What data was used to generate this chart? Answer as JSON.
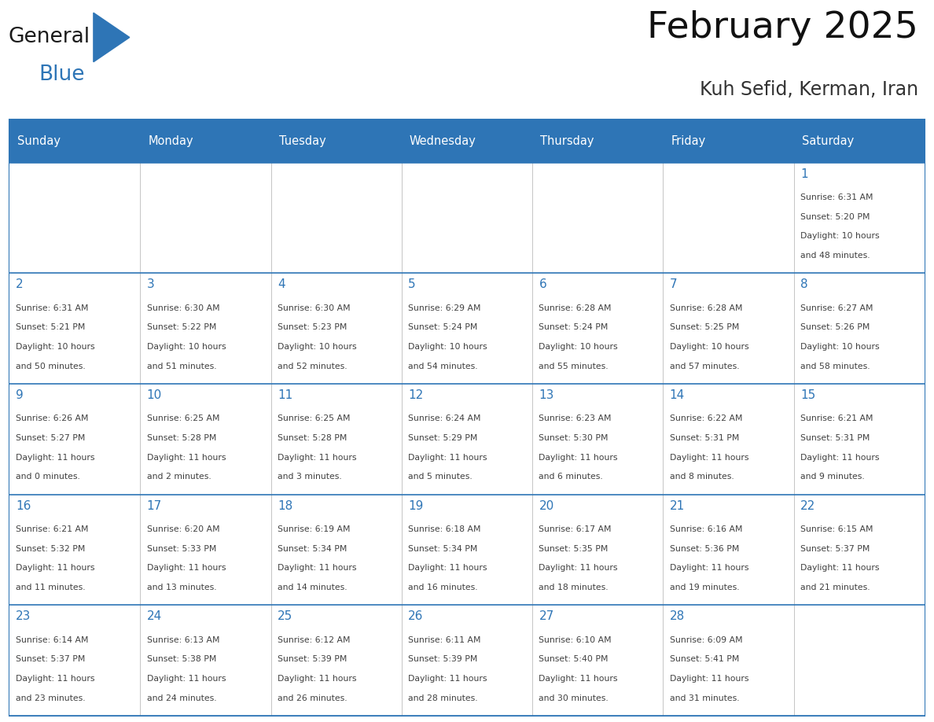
{
  "title": "February 2025",
  "subtitle": "Kuh Sefid, Kerman, Iran",
  "header_bg": "#2E75B6",
  "header_text_color": "#FFFFFF",
  "border_color": "#2E75B6",
  "day_number_color": "#2E75B6",
  "cell_text_color": "#404040",
  "days_of_week": [
    "Sunday",
    "Monday",
    "Tuesday",
    "Wednesday",
    "Thursday",
    "Friday",
    "Saturday"
  ],
  "calendar_data": [
    [
      {
        "day": "",
        "lines": []
      },
      {
        "day": "",
        "lines": []
      },
      {
        "day": "",
        "lines": []
      },
      {
        "day": "",
        "lines": []
      },
      {
        "day": "",
        "lines": []
      },
      {
        "day": "",
        "lines": []
      },
      {
        "day": "1",
        "lines": [
          "Sunrise: 6:31 AM",
          "Sunset: 5:20 PM",
          "Daylight: 10 hours",
          "and 48 minutes."
        ]
      }
    ],
    [
      {
        "day": "2",
        "lines": [
          "Sunrise: 6:31 AM",
          "Sunset: 5:21 PM",
          "Daylight: 10 hours",
          "and 50 minutes."
        ]
      },
      {
        "day": "3",
        "lines": [
          "Sunrise: 6:30 AM",
          "Sunset: 5:22 PM",
          "Daylight: 10 hours",
          "and 51 minutes."
        ]
      },
      {
        "day": "4",
        "lines": [
          "Sunrise: 6:30 AM",
          "Sunset: 5:23 PM",
          "Daylight: 10 hours",
          "and 52 minutes."
        ]
      },
      {
        "day": "5",
        "lines": [
          "Sunrise: 6:29 AM",
          "Sunset: 5:24 PM",
          "Daylight: 10 hours",
          "and 54 minutes."
        ]
      },
      {
        "day": "6",
        "lines": [
          "Sunrise: 6:28 AM",
          "Sunset: 5:24 PM",
          "Daylight: 10 hours",
          "and 55 minutes."
        ]
      },
      {
        "day": "7",
        "lines": [
          "Sunrise: 6:28 AM",
          "Sunset: 5:25 PM",
          "Daylight: 10 hours",
          "and 57 minutes."
        ]
      },
      {
        "day": "8",
        "lines": [
          "Sunrise: 6:27 AM",
          "Sunset: 5:26 PM",
          "Daylight: 10 hours",
          "and 58 minutes."
        ]
      }
    ],
    [
      {
        "day": "9",
        "lines": [
          "Sunrise: 6:26 AM",
          "Sunset: 5:27 PM",
          "Daylight: 11 hours",
          "and 0 minutes."
        ]
      },
      {
        "day": "10",
        "lines": [
          "Sunrise: 6:25 AM",
          "Sunset: 5:28 PM",
          "Daylight: 11 hours",
          "and 2 minutes."
        ]
      },
      {
        "day": "11",
        "lines": [
          "Sunrise: 6:25 AM",
          "Sunset: 5:28 PM",
          "Daylight: 11 hours",
          "and 3 minutes."
        ]
      },
      {
        "day": "12",
        "lines": [
          "Sunrise: 6:24 AM",
          "Sunset: 5:29 PM",
          "Daylight: 11 hours",
          "and 5 minutes."
        ]
      },
      {
        "day": "13",
        "lines": [
          "Sunrise: 6:23 AM",
          "Sunset: 5:30 PM",
          "Daylight: 11 hours",
          "and 6 minutes."
        ]
      },
      {
        "day": "14",
        "lines": [
          "Sunrise: 6:22 AM",
          "Sunset: 5:31 PM",
          "Daylight: 11 hours",
          "and 8 minutes."
        ]
      },
      {
        "day": "15",
        "lines": [
          "Sunrise: 6:21 AM",
          "Sunset: 5:31 PM",
          "Daylight: 11 hours",
          "and 9 minutes."
        ]
      }
    ],
    [
      {
        "day": "16",
        "lines": [
          "Sunrise: 6:21 AM",
          "Sunset: 5:32 PM",
          "Daylight: 11 hours",
          "and 11 minutes."
        ]
      },
      {
        "day": "17",
        "lines": [
          "Sunrise: 6:20 AM",
          "Sunset: 5:33 PM",
          "Daylight: 11 hours",
          "and 13 minutes."
        ]
      },
      {
        "day": "18",
        "lines": [
          "Sunrise: 6:19 AM",
          "Sunset: 5:34 PM",
          "Daylight: 11 hours",
          "and 14 minutes."
        ]
      },
      {
        "day": "19",
        "lines": [
          "Sunrise: 6:18 AM",
          "Sunset: 5:34 PM",
          "Daylight: 11 hours",
          "and 16 minutes."
        ]
      },
      {
        "day": "20",
        "lines": [
          "Sunrise: 6:17 AM",
          "Sunset: 5:35 PM",
          "Daylight: 11 hours",
          "and 18 minutes."
        ]
      },
      {
        "day": "21",
        "lines": [
          "Sunrise: 6:16 AM",
          "Sunset: 5:36 PM",
          "Daylight: 11 hours",
          "and 19 minutes."
        ]
      },
      {
        "day": "22",
        "lines": [
          "Sunrise: 6:15 AM",
          "Sunset: 5:37 PM",
          "Daylight: 11 hours",
          "and 21 minutes."
        ]
      }
    ],
    [
      {
        "day": "23",
        "lines": [
          "Sunrise: 6:14 AM",
          "Sunset: 5:37 PM",
          "Daylight: 11 hours",
          "and 23 minutes."
        ]
      },
      {
        "day": "24",
        "lines": [
          "Sunrise: 6:13 AM",
          "Sunset: 5:38 PM",
          "Daylight: 11 hours",
          "and 24 minutes."
        ]
      },
      {
        "day": "25",
        "lines": [
          "Sunrise: 6:12 AM",
          "Sunset: 5:39 PM",
          "Daylight: 11 hours",
          "and 26 minutes."
        ]
      },
      {
        "day": "26",
        "lines": [
          "Sunrise: 6:11 AM",
          "Sunset: 5:39 PM",
          "Daylight: 11 hours",
          "and 28 minutes."
        ]
      },
      {
        "day": "27",
        "lines": [
          "Sunrise: 6:10 AM",
          "Sunset: 5:40 PM",
          "Daylight: 11 hours",
          "and 30 minutes."
        ]
      },
      {
        "day": "28",
        "lines": [
          "Sunrise: 6:09 AM",
          "Sunset: 5:41 PM",
          "Daylight: 11 hours",
          "and 31 minutes."
        ]
      },
      {
        "day": "",
        "lines": []
      }
    ]
  ]
}
